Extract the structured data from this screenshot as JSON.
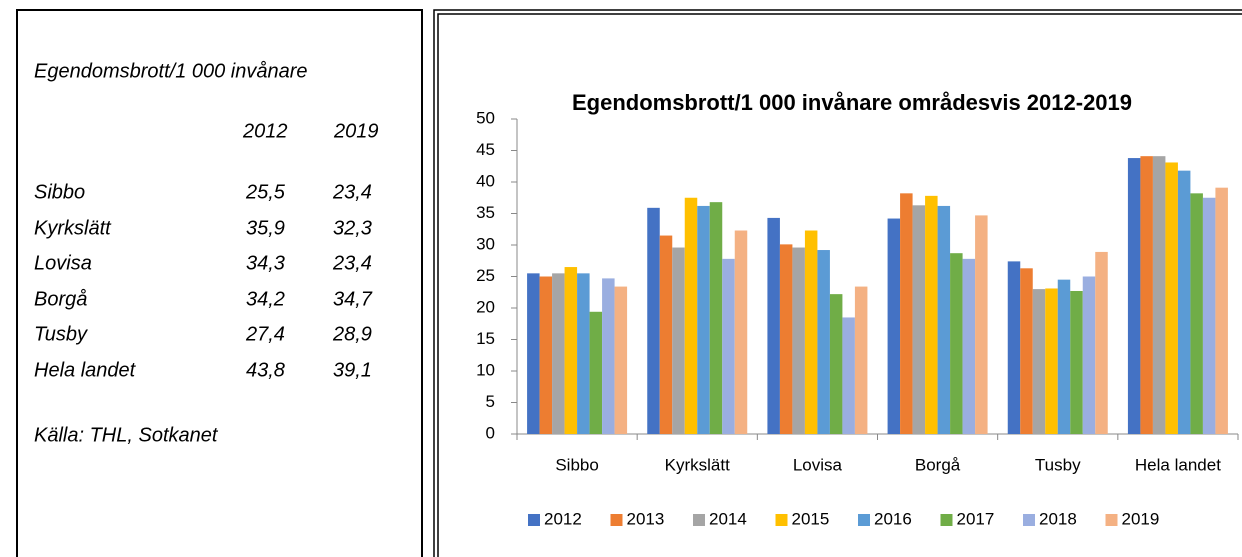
{
  "table": {
    "title": "Egendomsbrott/1 000 invånare",
    "header": [
      "2012",
      "2019"
    ],
    "rows": [
      [
        "Sibbo",
        "25,5",
        "23,4"
      ],
      [
        "Kyrkslätt",
        "35,9",
        "32,3"
      ],
      [
        "Lovisa",
        "34,3",
        "23,4"
      ],
      [
        "Borgå",
        "34,2",
        "34,7"
      ],
      [
        "Tusby",
        "27,4",
        "28,9"
      ],
      [
        "Hela landet",
        "43,8",
        "39,1"
      ]
    ],
    "source": "Källa: THL, Sotkanet"
  },
  "chart_data": {
    "type": "bar",
    "title": "Egendomsbrott/1 000 invånare områdesvis 2012-2019",
    "categories": [
      "Sibbo",
      "Kyrkslätt",
      "Lovisa",
      "Borgå",
      "Tusby",
      "Hela landet"
    ],
    "series": [
      {
        "name": "2012",
        "color": "#4472c4",
        "values": [
          25.5,
          35.9,
          34.3,
          34.2,
          27.4,
          43.8
        ]
      },
      {
        "name": "2013",
        "color": "#ed7d31",
        "values": [
          25.0,
          31.5,
          30.1,
          38.2,
          26.3,
          44.1
        ]
      },
      {
        "name": "2014",
        "color": "#a5a5a5",
        "values": [
          25.5,
          29.6,
          29.6,
          36.3,
          23.0,
          44.1
        ]
      },
      {
        "name": "2015",
        "color": "#ffc000",
        "values": [
          26.5,
          37.5,
          32.3,
          37.8,
          23.1,
          43.1
        ]
      },
      {
        "name": "2016",
        "color": "#5b9bd5",
        "values": [
          25.5,
          36.2,
          29.2,
          36.2,
          24.5,
          41.8
        ]
      },
      {
        "name": "2017",
        "color": "#70ad47",
        "values": [
          19.4,
          36.8,
          22.2,
          28.7,
          22.7,
          38.2
        ]
      },
      {
        "name": "2018",
        "color": "#9aaee0",
        "values": [
          24.7,
          27.8,
          18.5,
          27.8,
          25.0,
          37.5
        ]
      },
      {
        "name": "2019",
        "color": "#f4b183",
        "values": [
          23.4,
          32.3,
          23.4,
          34.7,
          28.9,
          39.1
        ]
      }
    ],
    "ylim": [
      0,
      50
    ],
    "yticks": [
      0,
      5,
      10,
      15,
      20,
      25,
      30,
      35,
      40,
      45,
      50
    ],
    "grid": false,
    "legend": "bottom"
  }
}
